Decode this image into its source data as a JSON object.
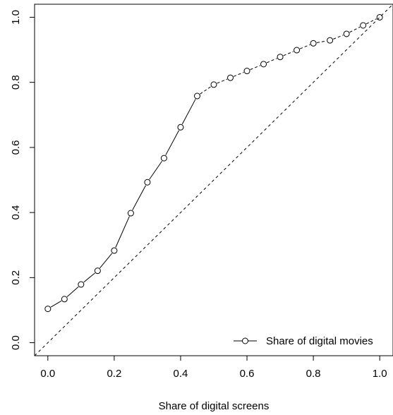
{
  "chart_data": {
    "type": "line",
    "title": "",
    "xlabel": "Share of digital screens",
    "ylabel": "",
    "xlim": [
      -0.04,
      1.04
    ],
    "ylim": [
      -0.04,
      1.04
    ],
    "x_ticks": [
      0.0,
      0.2,
      0.4,
      0.6,
      0.8,
      1.0
    ],
    "y_ticks": [
      0.0,
      0.2,
      0.4,
      0.6,
      0.8,
      1.0
    ],
    "x_tick_labels": [
      "0.0",
      "0.2",
      "0.4",
      "0.6",
      "0.8",
      "1.0"
    ],
    "y_tick_labels": [
      "0.0",
      "0.2",
      "0.4",
      "0.6",
      "0.8",
      "1.0"
    ],
    "grid": false,
    "legend_position": "bottom-right",
    "series": [
      {
        "name": "Share of digital movies",
        "style": "solid-then-dashed with open circle markers",
        "x": [
          0.0,
          0.05,
          0.1,
          0.15,
          0.2,
          0.25,
          0.3,
          0.35,
          0.4,
          0.45,
          0.5,
          0.55,
          0.6,
          0.65,
          0.7,
          0.75,
          0.8,
          0.85,
          0.9,
          0.95,
          1.0
        ],
        "y": [
          0.104,
          0.134,
          0.179,
          0.221,
          0.283,
          0.398,
          0.493,
          0.567,
          0.662,
          0.758,
          0.793,
          0.814,
          0.835,
          0.856,
          0.878,
          0.899,
          0.92,
          0.929,
          0.949,
          0.975,
          1.0
        ]
      }
    ],
    "reference_line": {
      "x": [
        -0.04,
        1.04
      ],
      "y": [
        -0.04,
        1.04
      ],
      "style": "dashed"
    },
    "colors": {
      "line": "#000000",
      "background": "#ffffff"
    }
  }
}
